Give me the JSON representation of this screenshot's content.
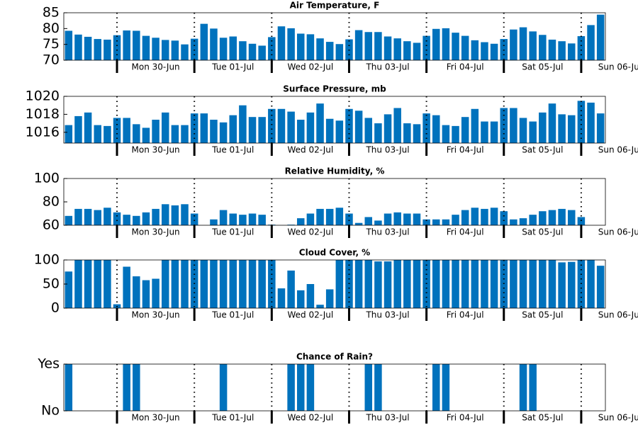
{
  "chart_data": [
    {
      "type": "bar",
      "title": "Air Temperature, F",
      "color": "#0072bd",
      "categories": [
        null,
        null,
        null,
        null,
        null,
        null,
        null,
        null,
        null,
        null,
        null,
        null,
        null,
        null,
        null,
        null,
        null,
        null,
        null,
        null,
        null,
        null,
        null,
        null,
        null,
        null,
        null,
        null,
        null,
        null,
        null,
        null,
        null,
        null,
        null,
        null,
        null,
        null,
        null,
        null,
        null,
        null,
        null,
        null,
        null,
        null,
        null,
        null,
        null,
        null,
        null,
        null,
        null,
        null,
        null,
        null
      ],
      "values": [
        79.3,
        78.1,
        77.4,
        76.7,
        76.5,
        77.9,
        79.4,
        79.3,
        77.7,
        77.1,
        76.4,
        76.2,
        75.0,
        76.8,
        81.5,
        80.0,
        77.1,
        77.5,
        76.0,
        75.2,
        74.6,
        77.3,
        80.7,
        80.1,
        78.4,
        78.2,
        76.9,
        75.8,
        75.1,
        76.6,
        79.5,
        78.9,
        78.9,
        77.5,
        76.9,
        76.0,
        75.5,
        77.7,
        79.9,
        80.1,
        78.7,
        77.7,
        76.3,
        75.7,
        75.2,
        76.7,
        79.7,
        80.4,
        79.1,
        78.0,
        76.5,
        76.0,
        75.3,
        77.6,
        81.1,
        84.4
      ],
      "xlim": [
        -0.5,
        55.5
      ],
      "xticks": [
        {
          "value": 5,
          "label": "Mon 30-Jun"
        },
        {
          "value": 13,
          "label": "Tue 01-Jul"
        },
        {
          "value": 21,
          "label": "Wed 02-Jul"
        },
        {
          "value": 29,
          "label": "Thu 03-Jul"
        },
        {
          "value": 37,
          "label": "Fri 04-Jul"
        },
        {
          "value": 45,
          "label": "Sat 05-Jul"
        },
        {
          "value": 53,
          "label": "Sun 06-Jul"
        }
      ],
      "ylim": [
        70,
        85
      ],
      "yticks": [
        70,
        75,
        80,
        85
      ]
    },
    {
      "type": "bar",
      "title": "Surface Pressure, mb",
      "color": "#0072bd",
      "categories": [
        null,
        null,
        null,
        null,
        null,
        null,
        null,
        null,
        null,
        null,
        null,
        null,
        null,
        null,
        null,
        null,
        null,
        null,
        null,
        null,
        null,
        null,
        null,
        null,
        null,
        null,
        null,
        null,
        null,
        null,
        null,
        null,
        null,
        null,
        null,
        null,
        null,
        null,
        null,
        null,
        null,
        null,
        null,
        null,
        null,
        null,
        null,
        null,
        null,
        null,
        null,
        null,
        null,
        null,
        null,
        null
      ],
      "values": [
        1016.8,
        1017.8,
        1018.2,
        1016.8,
        1016.7,
        1017.6,
        1017.6,
        1016.9,
        1016.5,
        1017.4,
        1018.2,
        1016.8,
        1016.8,
        1018.1,
        1018.1,
        1017.4,
        1017.1,
        1017.9,
        1019.0,
        1017.7,
        1017.7,
        1018.6,
        1018.6,
        1018.3,
        1017.4,
        1018.2,
        1019.2,
        1017.5,
        1017.3,
        1018.6,
        1018.4,
        1017.6,
        1017.0,
        1018.0,
        1018.7,
        1017.0,
        1016.9,
        1018.1,
        1017.9,
        1016.8,
        1016.7,
        1017.7,
        1018.6,
        1017.2,
        1017.2,
        1018.7,
        1018.7,
        1017.6,
        1017.2,
        1018.2,
        1019.2,
        1018.0,
        1017.9,
        1019.5,
        1019.3,
        1018.1
      ],
      "xlim": [
        -0.5,
        55.5
      ],
      "xticks": [
        {
          "value": 5,
          "label": "Mon 30-Jun"
        },
        {
          "value": 13,
          "label": "Tue 01-Jul"
        },
        {
          "value": 21,
          "label": "Wed 02-Jul"
        },
        {
          "value": 29,
          "label": "Thu 03-Jul"
        },
        {
          "value": 37,
          "label": "Fri 04-Jul"
        },
        {
          "value": 45,
          "label": "Sat 05-Jul"
        },
        {
          "value": 53,
          "label": "Sun 06-Jul"
        }
      ],
      "ylim": [
        1014.8,
        1020
      ],
      "yticks": [
        1016,
        1018,
        1020
      ]
    },
    {
      "type": "bar",
      "title": "Relative Humidity, %",
      "color": "#0072bd",
      "categories": [
        null,
        null,
        null,
        null,
        null,
        null,
        null,
        null,
        null,
        null,
        null,
        null,
        null,
        null,
        null,
        null,
        null,
        null,
        null,
        null,
        null,
        null,
        null,
        null,
        null,
        null,
        null,
        null,
        null,
        null,
        null,
        null,
        null,
        null,
        null,
        null,
        null,
        null,
        null,
        null,
        null,
        null,
        null,
        null,
        null,
        null,
        null,
        null,
        null,
        null,
        null,
        null,
        null,
        null,
        null,
        null
      ],
      "values": [
        68,
        74,
        74,
        73,
        75,
        71,
        69,
        68,
        71,
        74,
        78,
        77,
        78,
        70,
        58,
        65,
        73,
        70,
        69,
        70,
        69,
        60.5,
        58,
        60.5,
        66,
        70,
        74,
        74,
        75,
        70,
        62,
        67,
        64,
        70,
        71,
        70,
        70,
        65,
        65,
        65,
        69,
        73,
        75,
        74,
        75,
        72,
        65,
        66,
        69,
        72,
        73,
        74,
        73,
        67,
        58,
        58
      ],
      "xlim": [
        -0.5,
        55.5
      ],
      "xticks": [
        {
          "value": 5,
          "label": "Mon 30-Jun"
        },
        {
          "value": 13,
          "label": "Tue 01-Jul"
        },
        {
          "value": 21,
          "label": "Wed 02-Jul"
        },
        {
          "value": 29,
          "label": "Thu 03-Jul"
        },
        {
          "value": 37,
          "label": "Fri 04-Jul"
        },
        {
          "value": 45,
          "label": "Sat 05-Jul"
        },
        {
          "value": 53,
          "label": "Sun 06-Jul"
        }
      ],
      "ylim": [
        60,
        100
      ],
      "yticks": [
        60,
        80,
        100
      ]
    },
    {
      "type": "bar",
      "title": "Cloud Cover, %",
      "color": "#0072bd",
      "categories": [
        null,
        null,
        null,
        null,
        null,
        null,
        null,
        null,
        null,
        null,
        null,
        null,
        null,
        null,
        null,
        null,
        null,
        null,
        null,
        null,
        null,
        null,
        null,
        null,
        null,
        null,
        null,
        null,
        null,
        null,
        null,
        null,
        null,
        null,
        null,
        null,
        null,
        null,
        null,
        null,
        null,
        null,
        null,
        null,
        null,
        null,
        null,
        null,
        null,
        null,
        null,
        null,
        null,
        null,
        null,
        null
      ],
      "values": [
        76,
        100,
        100,
        100,
        100,
        8,
        86,
        66,
        58,
        61,
        100,
        100,
        100,
        100,
        100,
        100,
        100,
        100,
        100,
        100,
        100,
        100,
        41,
        78,
        37,
        50,
        7,
        39,
        100,
        100,
        100,
        100,
        97,
        97,
        100,
        100,
        100,
        100,
        100,
        100,
        100,
        100,
        100,
        100,
        100,
        100,
        100,
        100,
        100,
        100,
        100,
        95,
        96,
        100,
        100,
        88
      ],
      "xlim": [
        -0.5,
        55.5
      ],
      "xticks": [
        {
          "value": 5,
          "label": "Mon 30-Jun"
        },
        {
          "value": 13,
          "label": "Tue 01-Jul"
        },
        {
          "value": 21,
          "label": "Wed 02-Jul"
        },
        {
          "value": 29,
          "label": "Thu 03-Jul"
        },
        {
          "value": 37,
          "label": "Fri 04-Jul"
        },
        {
          "value": 45,
          "label": "Sat 05-Jul"
        },
        {
          "value": 53,
          "label": "Sun 06-Jul"
        }
      ],
      "ylim": [
        0,
        100
      ],
      "yticks": [
        0,
        50,
        100
      ]
    },
    {
      "type": "bar",
      "title": "Chance of Rain?",
      "color": "#0072bd",
      "categories": [
        null,
        null,
        null,
        null,
        null,
        null,
        null,
        null,
        null,
        null,
        null,
        null,
        null,
        null,
        null,
        null,
        null,
        null,
        null,
        null,
        null,
        null,
        null,
        null,
        null,
        null,
        null,
        null,
        null,
        null,
        null,
        null,
        null,
        null,
        null,
        null,
        null,
        null,
        null,
        null,
        null,
        null,
        null,
        null,
        null,
        null,
        null,
        null,
        null,
        null,
        null,
        null,
        null,
        null,
        null,
        null
      ],
      "values": [
        1,
        0,
        0,
        0,
        0,
        0,
        1,
        1,
        0,
        0,
        0,
        0,
        0,
        0,
        0,
        0,
        1,
        0,
        0,
        0,
        0,
        0,
        0,
        1,
        1,
        1,
        0,
        0,
        0,
        0,
        0,
        1,
        1,
        0,
        0,
        0,
        0,
        0,
        1,
        1,
        0,
        0,
        0,
        0,
        0,
        0,
        0,
        1,
        1,
        0,
        0,
        0,
        0,
        0,
        0,
        0
      ],
      "xlim": [
        -0.5,
        55.5
      ],
      "xticks": [
        {
          "value": 5,
          "label": "Mon 30-Jun"
        },
        {
          "value": 13,
          "label": "Tue 01-Jul"
        },
        {
          "value": 21,
          "label": "Wed 02-Jul"
        },
        {
          "value": 29,
          "label": "Thu 03-Jul"
        },
        {
          "value": 37,
          "label": "Fri 04-Jul"
        },
        {
          "value": 45,
          "label": "Sat 05-Jul"
        },
        {
          "value": 53,
          "label": "Sun 06-Jul"
        }
      ],
      "ylim": [
        0,
        1
      ],
      "yticks": [
        {
          "value": 0,
          "label": "No"
        },
        {
          "value": 1,
          "label": "Yes"
        }
      ]
    }
  ]
}
